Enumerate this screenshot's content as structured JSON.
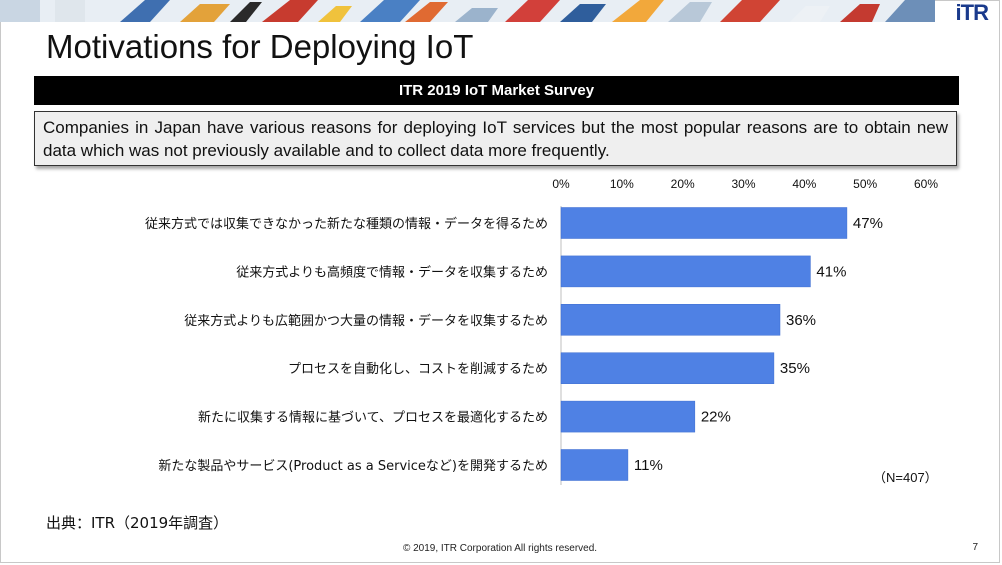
{
  "header": {
    "logo_text": "iTR",
    "title": "Motivations for Deploying IoT"
  },
  "survey_bar": {
    "text": "ITR 2019 IoT Market Survey"
  },
  "summary": {
    "text": "Companies in Japan have various reasons for deploying IoT services but the most popular reasons are to obtain new data which was not previously available and to collect data more frequently."
  },
  "colors": {
    "bar": "#4f81e4",
    "bar_edge": "#3a6bd0",
    "survey_bar_bg": "#000000",
    "summary_bg": "#efefef",
    "logo": "#1a3a8c"
  },
  "chart_data": {
    "type": "bar",
    "orientation": "horizontal",
    "categories": [
      "従来方式では収集できなかった新たな種類の情報・データを得るため",
      "従来方式よりも高頻度で情報・データを収集するため",
      "従来方式よりも広範囲かつ大量の情報・データを収集するため",
      "プロセスを自動化し、コストを削減するため",
      "新たに収集する情報に基づいて、プロセスを最適化するため",
      "新たな製品やサービス(Product as a Serviceなど)を開発するため"
    ],
    "values": [
      47,
      41,
      36,
      35,
      22,
      11
    ],
    "value_labels": [
      "47%",
      "41%",
      "36%",
      "35%",
      "22%",
      "11%"
    ],
    "xlim": [
      0,
      60
    ],
    "x_ticks": [
      "0%",
      "10%",
      "20%",
      "30%",
      "40%",
      "50%",
      "60%"
    ],
    "x_axis_position": "top",
    "grid": false,
    "legend": "none",
    "note": "（N=407）"
  },
  "footer": {
    "source": "出典：ITR（2019年調査）",
    "copyright": "© 2019, ITR Corporation  All rights reserved.",
    "page_number": "7"
  }
}
